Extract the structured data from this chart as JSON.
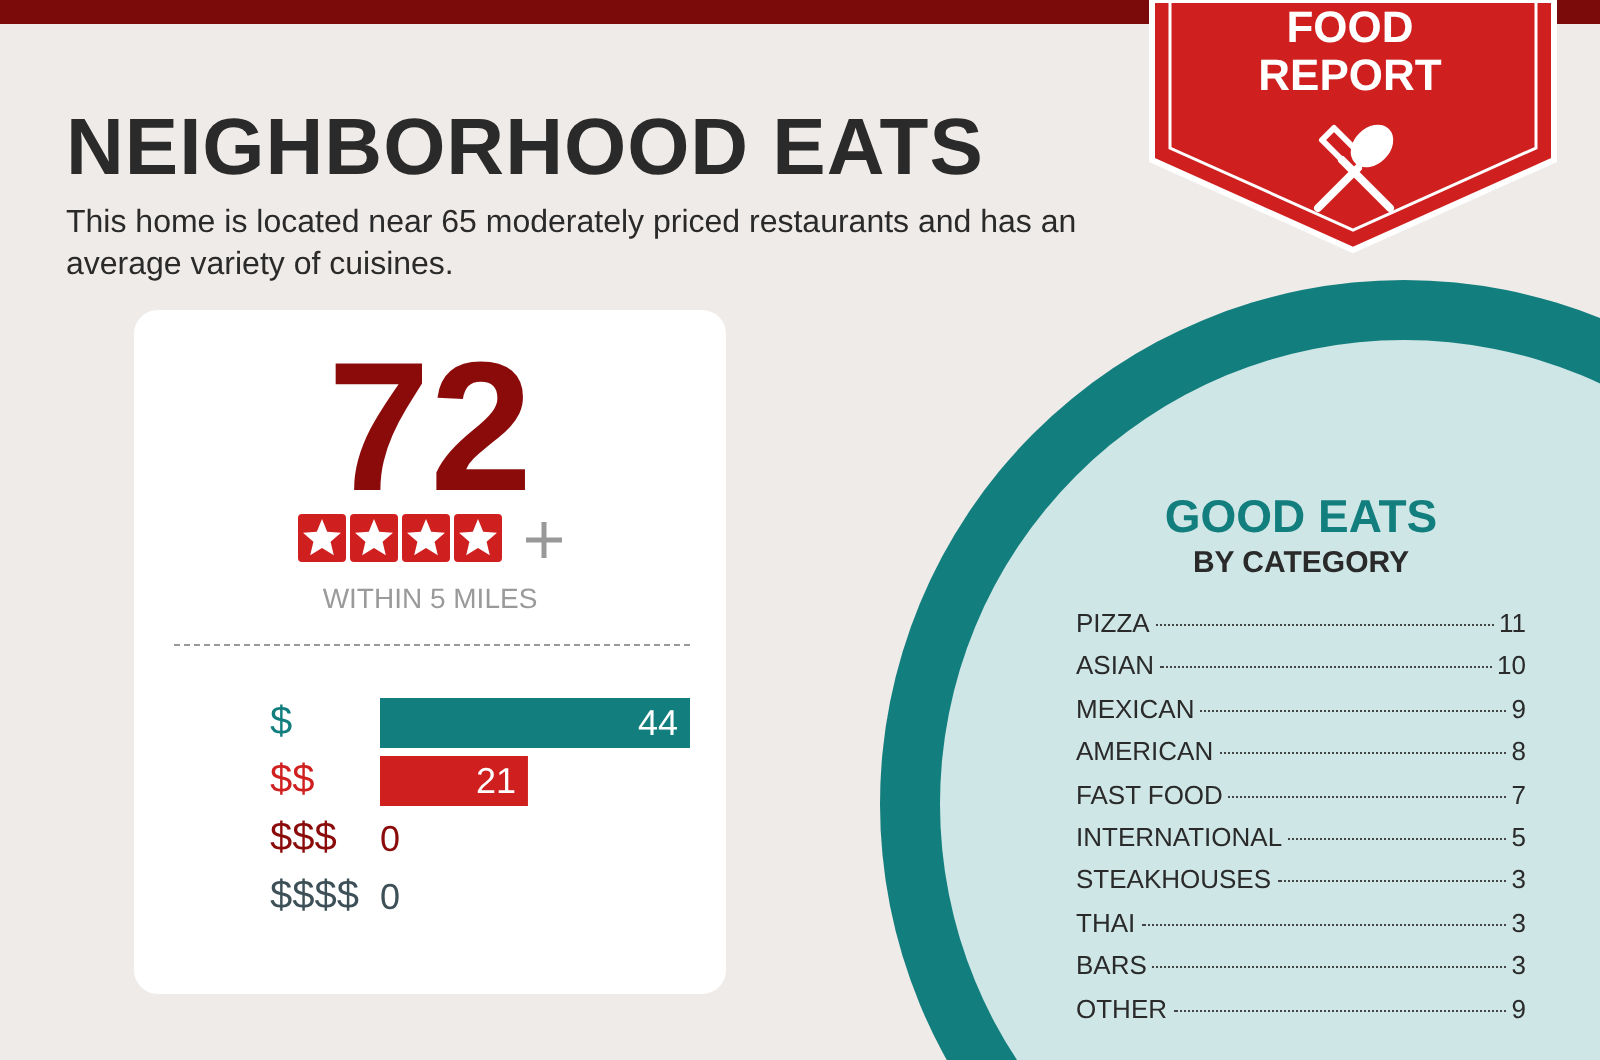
{
  "chart_data": [
    {
      "type": "bar",
      "orientation": "horizontal",
      "title": "NEIGHBORHOOD EATS",
      "subtitle": "This home is located near 65 moderately priced restaurants and has an average variety of cuisines.",
      "annotations": [
        "72",
        "WITHIN 5 MILES",
        "FOOD REPORT"
      ],
      "categories": [
        "$",
        "$$",
        "$$$",
        "$$$$"
      ],
      "values": [
        44,
        21,
        0,
        0
      ],
      "colors": [
        "#137e7e",
        "#d01f1f",
        "#8b0b0b",
        "#3d4f57"
      ],
      "xlim": [
        0,
        44
      ],
      "data_labels": true,
      "tick_labels": "y"
    },
    {
      "type": "other",
      "title": "GOOD EATS",
      "subtitle": "BY CATEGORY",
      "categories": [
        "PIZZA",
        "ASIAN",
        "MEXICAN",
        "AMERICAN",
        "FAST FOOD",
        "INTERNATIONAL",
        "STEAKHOUSES",
        "THAI",
        "BARS",
        "OTHER"
      ],
      "values": [
        11,
        10,
        9,
        8,
        7,
        5,
        3,
        3,
        3,
        9
      ],
      "data_labels": true
    }
  ]
}
